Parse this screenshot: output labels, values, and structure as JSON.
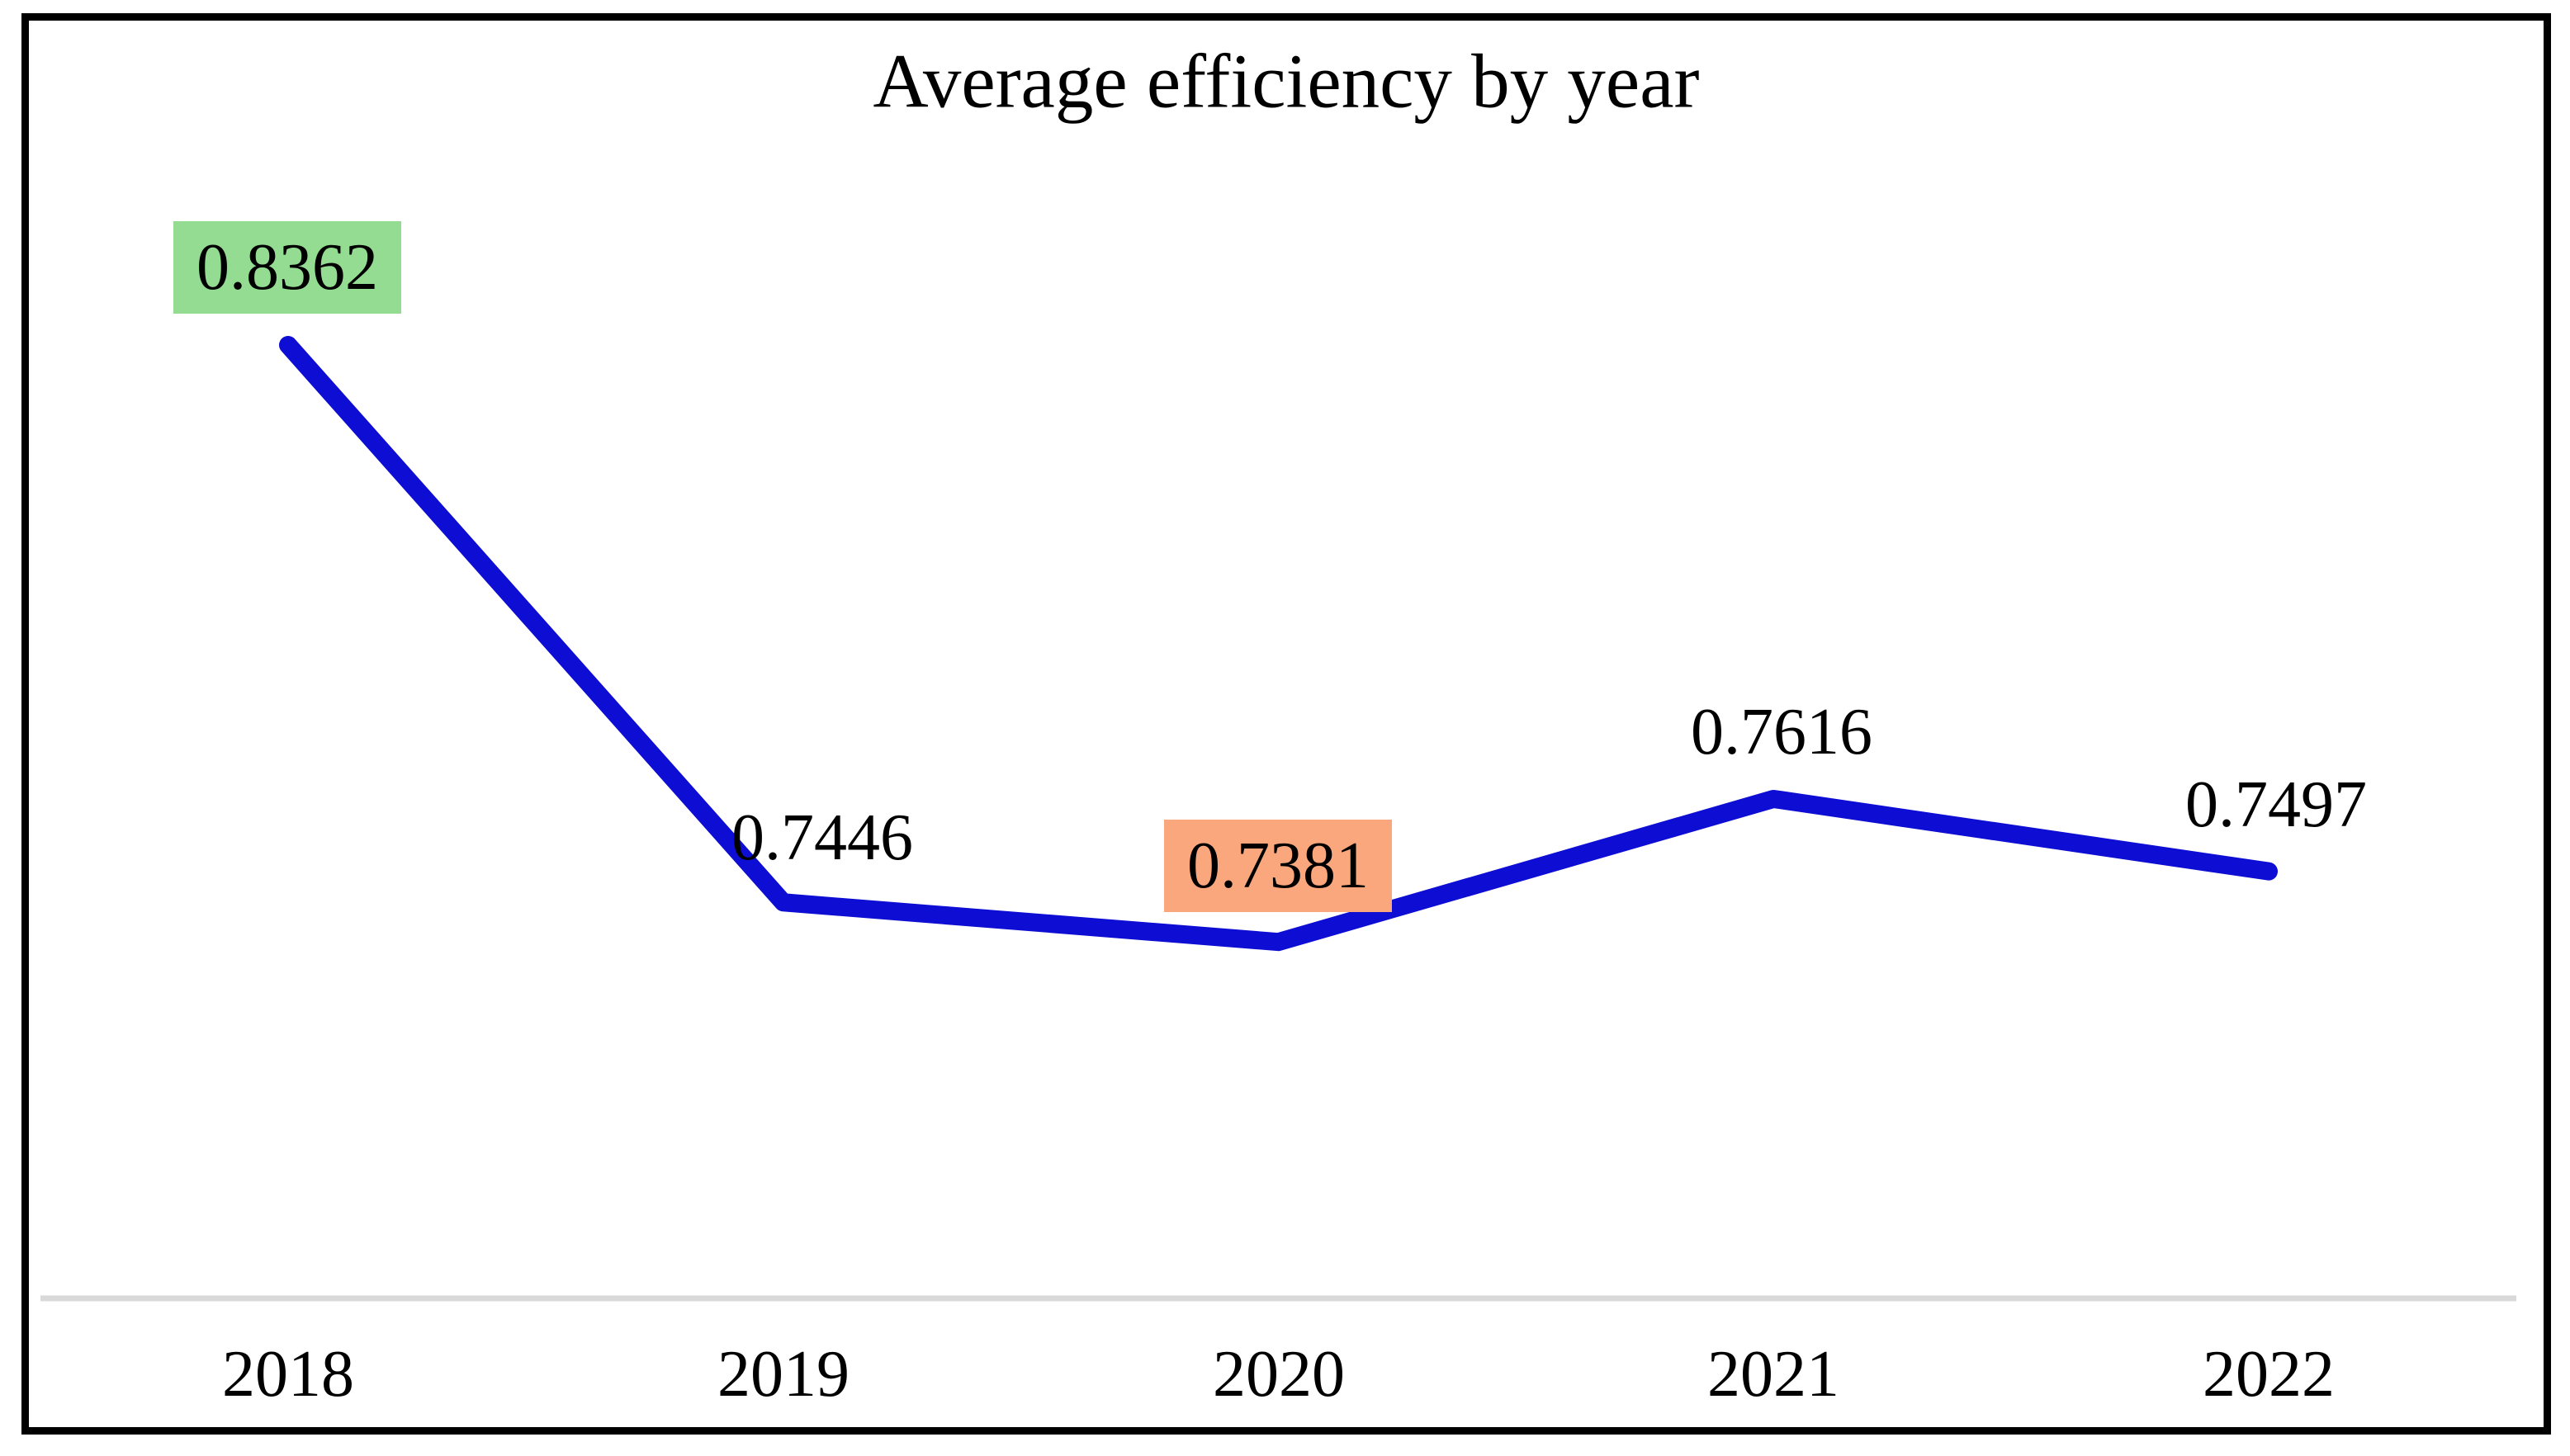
{
  "chart_data": {
    "type": "line",
    "title": "Average efficiency by year",
    "categories": [
      "2018",
      "2019",
      "2020",
      "2021",
      "2022"
    ],
    "series": [
      {
        "name": "Average efficiency",
        "values": [
          0.8362,
          0.7446,
          0.7381,
          0.7616,
          0.7497
        ]
      }
    ],
    "point_labels": [
      "0.8362",
      "0.7446",
      "0.7381",
      "0.7616",
      "0.7497"
    ],
    "xlabel": "",
    "ylabel": "",
    "grid": false,
    "legend_position": "none",
    "y_axis_visible": false,
    "line_color": "#0D0DD3",
    "x_axis_line_color": "#D9D9D9",
    "highlight_max_color": "#94DC92",
    "highlight_min_color": "#FBA77E",
    "frame_color": "#000000"
  }
}
